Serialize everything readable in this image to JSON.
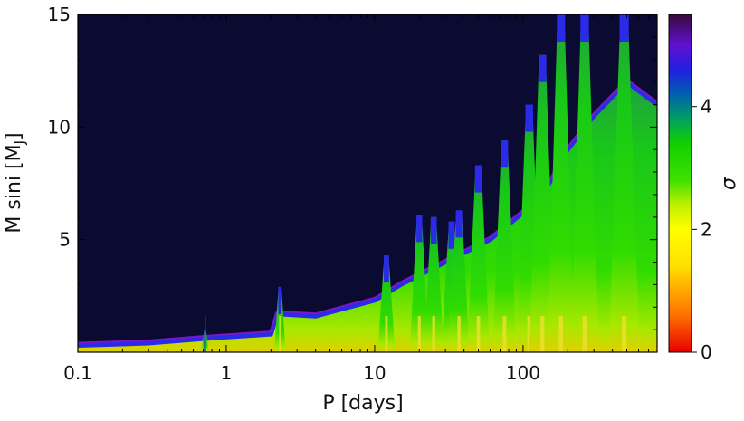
{
  "chart_data": {
    "type": "heatmap",
    "title": "",
    "xlabel": "P [days]",
    "ylabel": "M sini [M",
    "ylabel_sub": "J",
    "ylabel_close": "]",
    "x_scale": "log",
    "xlim": [
      0.1,
      800
    ],
    "ylim": [
      0,
      15
    ],
    "x_ticks": [
      {
        "value": 0.1,
        "label": "0.1"
      },
      {
        "value": 1,
        "label": "1"
      },
      {
        "value": 10,
        "label": "10"
      },
      {
        "value": 100,
        "label": "100"
      }
    ],
    "y_ticks": [
      {
        "value": 5,
        "label": "5"
      },
      {
        "value": 10,
        "label": "10"
      },
      {
        "value": 15,
        "label": "15"
      }
    ],
    "colorbar": {
      "label": "σ",
      "range": [
        0,
        5.5
      ],
      "ticks": [
        {
          "value": 0,
          "label": "0"
        },
        {
          "value": 2,
          "label": "2"
        },
        {
          "value": 4,
          "label": "4"
        }
      ],
      "colors": [
        {
          "value": 0.0,
          "color": "#e80000"
        },
        {
          "value": 0.6,
          "color": "#ff7000"
        },
        {
          "value": 1.4,
          "color": "#ffe000"
        },
        {
          "value": 2.0,
          "color": "#ffff00"
        },
        {
          "value": 2.4,
          "color": "#c0f000"
        },
        {
          "value": 2.8,
          "color": "#40e000"
        },
        {
          "value": 3.4,
          "color": "#10d000"
        },
        {
          "value": 3.8,
          "color": "#00a060"
        },
        {
          "value": 4.2,
          "color": "#0060b0"
        },
        {
          "value": 4.6,
          "color": "#2020e0"
        },
        {
          "value": 5.0,
          "color": "#6010d0"
        },
        {
          "value": 5.5,
          "color": "#3a0a3a"
        }
      ]
    },
    "background_color": "#0b0a30",
    "detection_boundary": [
      {
        "period": 0.1,
        "msini": 0.3
      },
      {
        "period": 0.3,
        "msini": 0.4
      },
      {
        "period": 0.7,
        "msini": 0.6
      },
      {
        "period": 2,
        "msini": 0.8
      },
      {
        "period": 2.2,
        "msini": 1.7
      },
      {
        "period": 4,
        "msini": 1.6
      },
      {
        "period": 10,
        "msini": 2.3
      },
      {
        "period": 15,
        "msini": 3.0
      },
      {
        "period": 30,
        "msini": 4.0
      },
      {
        "period": 60,
        "msini": 5.0
      },
      {
        "period": 100,
        "msini": 6.2
      },
      {
        "period": 150,
        "msini": 7.5
      },
      {
        "period": 200,
        "msini": 9.0
      },
      {
        "period": 300,
        "msini": 10.5
      },
      {
        "period": 500,
        "msini": 12
      },
      {
        "period": 800,
        "msini": 11
      }
    ],
    "spikes": [
      {
        "period": 0.72,
        "msini": 1.0
      },
      {
        "period": 2.3,
        "msini": 2.9
      },
      {
        "period": 12,
        "msini": 4.3
      },
      {
        "period": 20,
        "msini": 6.1
      },
      {
        "period": 25,
        "msini": 6.0
      },
      {
        "period": 33,
        "msini": 5.8
      },
      {
        "period": 37,
        "msini": 6.3
      },
      {
        "period": 50,
        "msini": 8.3
      },
      {
        "period": 75,
        "msini": 9.4
      },
      {
        "period": 110,
        "msini": 11.0
      },
      {
        "period": 135,
        "msini": 13.2
      },
      {
        "period": 180,
        "msini": 15
      },
      {
        "period": 260,
        "msini": 15
      },
      {
        "period": 480,
        "msini": 15
      }
    ]
  }
}
